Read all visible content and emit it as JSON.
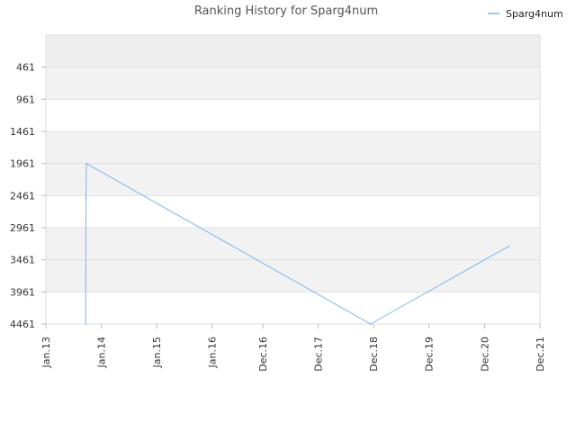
{
  "chart_data": {
    "type": "line",
    "title": "Ranking History for Sparg4num",
    "xlabel": "",
    "ylabel": "",
    "y_axis_inverted": true,
    "ylim": [
      -39,
      4461
    ],
    "y_ticks": [
      461,
      961,
      1461,
      1961,
      2461,
      2961,
      3461,
      3961,
      4461
    ],
    "xlim": [
      "2013-01-01",
      "2021-12-01"
    ],
    "x_ticks": [
      {
        "date": "2013-01-01",
        "label": "Jan.13"
      },
      {
        "date": "2014-01-01",
        "label": "Jan.14"
      },
      {
        "date": "2015-01-01",
        "label": "Jan.15"
      },
      {
        "date": "2016-01-01",
        "label": "Jan.16"
      },
      {
        "date": "2016-12-01",
        "label": "Dec.16"
      },
      {
        "date": "2017-12-01",
        "label": "Dec.17"
      },
      {
        "date": "2018-12-01",
        "label": "Dec.18"
      },
      {
        "date": "2019-12-01",
        "label": "Dec.19"
      },
      {
        "date": "2020-12-01",
        "label": "Dec.20"
      },
      {
        "date": "2021-12-01",
        "label": "Dec.21"
      }
    ],
    "grid": true,
    "legend_position": "top-right",
    "series": [
      {
        "name": "Sparg4num",
        "color": "#7cb5ec",
        "points": [
          {
            "x": "2013-09-20",
            "y": 4461
          },
          {
            "x": "2013-09-22",
            "y": 2500
          },
          {
            "x": "2013-09-25",
            "y": 1961
          },
          {
            "x": "2018-11-10",
            "y": 4461
          },
          {
            "x": "2021-05-10",
            "y": 3250
          }
        ]
      }
    ]
  }
}
